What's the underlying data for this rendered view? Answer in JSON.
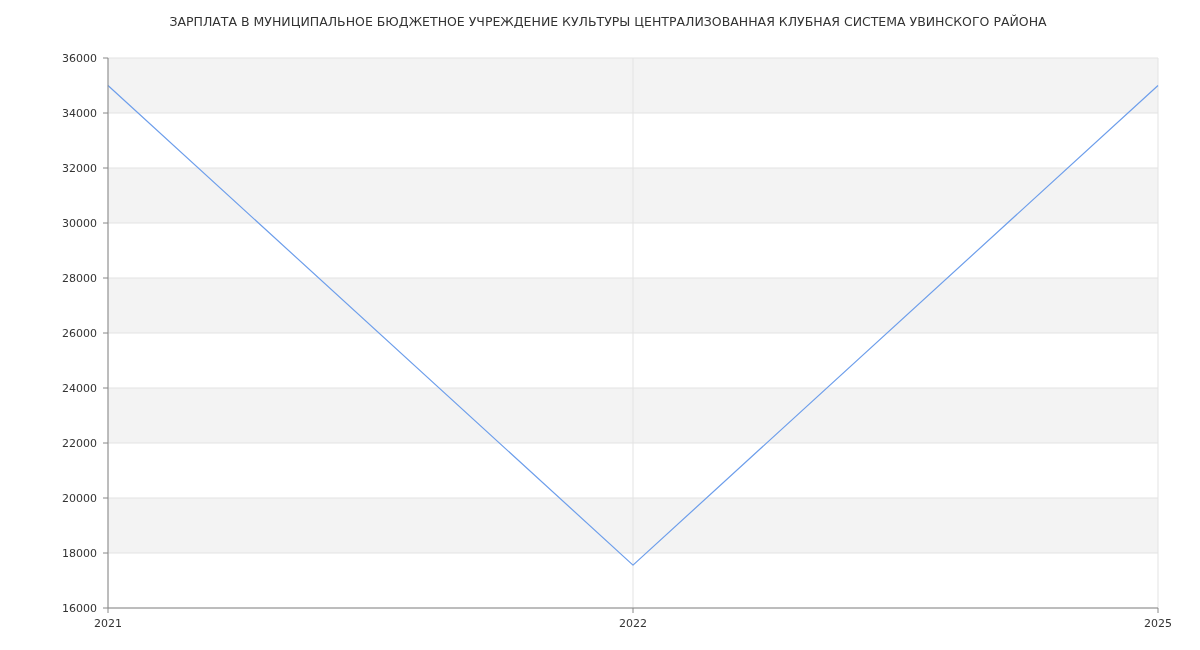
{
  "chart_data": {
    "type": "line",
    "title": "ЗАРПЛАТА В МУНИЦИПАЛЬНОЕ БЮДЖЕТНОЕ УЧРЕЖДЕНИЕ КУЛЬТУРЫ ЦЕНТРАЛИЗОВАННАЯ КЛУБНАЯ СИСТЕМА УВИНСКОГО РАЙОНА",
    "categories": [
      "2021",
      "2022",
      "2025"
    ],
    "series": [
      {
        "color": "#6d9eeb",
        "values": [
          35000,
          17560,
          35000
        ]
      }
    ],
    "ylim": [
      16000,
      36000
    ],
    "yticks": [
      16000,
      18000,
      20000,
      22000,
      24000,
      26000,
      28000,
      30000,
      32000,
      34000,
      36000
    ],
    "grid": true,
    "marker": "none"
  }
}
